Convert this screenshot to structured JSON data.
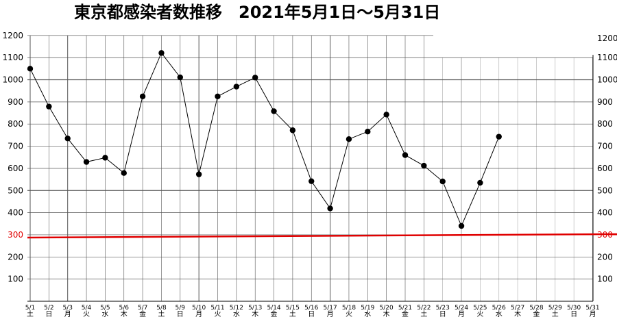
{
  "chart_data": {
    "type": "line",
    "title": "東京都感染者数推移　2021年5月1日～5月31日",
    "x": [
      "5/1",
      "5/2",
      "5/3",
      "5/4",
      "5/5",
      "5/6",
      "5/7",
      "5/8",
      "5/9",
      "5/10",
      "5/11",
      "5/12",
      "5/13",
      "5/14",
      "5/15",
      "5/16",
      "5/17",
      "5/18",
      "5/19",
      "5/20",
      "5/21",
      "5/22",
      "5/23",
      "5/24",
      "5/25",
      "5/26",
      "5/27",
      "5/28",
      "5/29",
      "5/30",
      "5/31"
    ],
    "weekdays": [
      "土",
      "日",
      "月",
      "火",
      "水",
      "木",
      "金",
      "土",
      "日",
      "月",
      "火",
      "水",
      "木",
      "金",
      "土",
      "日",
      "月",
      "火",
      "水",
      "木",
      "金",
      "土",
      "日",
      "月",
      "火",
      "水",
      "木",
      "金",
      "土",
      "日",
      "月"
    ],
    "values": [
      1050,
      879,
      735,
      629,
      648,
      579,
      925,
      1121,
      1011,
      573,
      925,
      969,
      1010,
      858,
      772,
      542,
      419,
      732,
      766,
      843,
      660,
      612,
      541,
      340,
      535,
      743,
      null,
      null,
      null,
      null,
      null
    ],
    "yticks": [
      "100",
      "200",
      "300",
      "400",
      "500",
      "600",
      "700",
      "800",
      "900",
      "1000",
      "1100",
      "1200"
    ],
    "ylim": [
      0,
      1200
    ],
    "reference_line": {
      "value": 300,
      "label": "300",
      "color": "#e00000"
    },
    "grid": true,
    "line_color": "#000000",
    "marker_color": "#000000"
  }
}
